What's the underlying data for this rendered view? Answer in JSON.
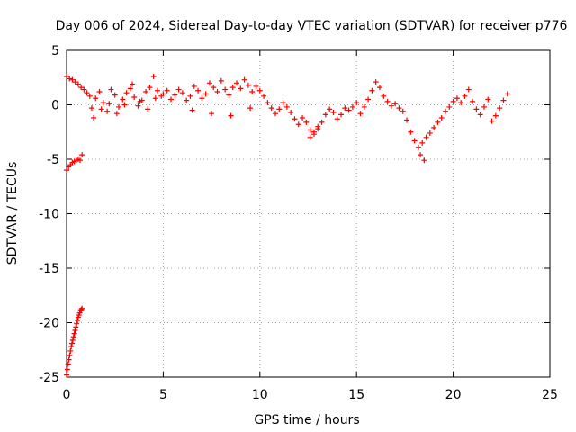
{
  "chart_data": {
    "type": "scatter",
    "title": "Day 006 of 2024, Sidereal Day-to-day VTEC variation (SDTVAR) for receiver p776",
    "xlabel": "GPS time / hours",
    "ylabel": "SDTVAR / TECUs",
    "xlim": [
      0,
      25
    ],
    "ylim": [
      -25,
      5
    ],
    "xticks": [
      0,
      5,
      10,
      15,
      20,
      25
    ],
    "yticks": [
      5,
      0,
      -5,
      -10,
      -15,
      -20,
      -25
    ],
    "grid": true,
    "marker": "+",
    "marker_color": "#ff0000",
    "series": [
      {
        "name": "SDTVAR",
        "x": [
          0.0,
          0.04,
          0.08,
          0.12,
          0.16,
          0.2,
          0.24,
          0.28,
          0.32,
          0.36,
          0.4,
          0.44,
          0.48,
          0.52,
          0.56,
          0.6,
          0.64,
          0.68,
          0.72,
          0.76,
          0.8,
          0.0,
          0.1,
          0.2,
          0.3,
          0.4,
          0.5,
          0.6,
          0.7,
          0.8,
          0.0,
          0.15,
          0.3,
          0.45,
          0.6,
          0.75,
          0.9,
          1.05,
          1.2,
          1.3,
          1.5,
          1.7,
          1.9,
          2.1,
          2.3,
          2.5,
          2.7,
          2.9,
          3.1,
          3.3,
          3.5,
          3.7,
          3.9,
          4.1,
          4.3,
          4.5,
          4.7,
          4.9,
          1.4,
          1.8,
          2.2,
          2.6,
          3.0,
          3.4,
          3.8,
          4.2,
          4.6,
          5.0,
          5.2,
          5.4,
          5.6,
          5.8,
          6.0,
          6.2,
          6.4,
          6.6,
          6.8,
          7.0,
          7.2,
          7.4,
          7.6,
          7.8,
          8.0,
          8.2,
          8.4,
          8.6,
          8.8,
          9.0,
          9.2,
          9.4,
          9.6,
          9.8,
          10.0,
          6.5,
          7.5,
          8.5,
          9.5,
          10.2,
          10.4,
          10.6,
          10.8,
          11.0,
          11.2,
          11.4,
          11.6,
          11.8,
          12.0,
          12.2,
          12.4,
          12.6,
          12.8,
          13.0,
          13.2,
          13.4,
          13.6,
          13.8,
          14.0,
          14.2,
          14.4,
          14.6,
          14.8,
          15.0,
          12.6,
          12.8,
          13.0,
          15.2,
          15.4,
          15.6,
          15.8,
          16.0,
          16.2,
          16.4,
          16.6,
          16.8,
          17.0,
          17.2,
          17.4,
          17.6,
          17.8,
          18.0,
          18.2,
          18.4,
          18.6,
          18.8,
          19.0,
          19.2,
          19.4,
          19.6,
          19.8,
          20.0,
          18.3,
          18.5,
          20.2,
          20.4,
          20.6,
          20.8,
          21.0,
          21.2,
          21.4,
          21.6,
          21.8,
          22.0,
          22.2,
          22.4,
          22.6,
          22.8
        ],
        "y": [
          -24.8,
          -24.3,
          -23.8,
          -23.4,
          -23.0,
          -22.6,
          -22.2,
          -21.9,
          -21.6,
          -21.3,
          -21.0,
          -20.7,
          -20.4,
          -20.1,
          -19.8,
          -19.5,
          -19.3,
          -19.1,
          -18.9,
          -18.8,
          -18.7,
          -6.0,
          -5.7,
          -5.5,
          -5.3,
          -5.2,
          -5.1,
          -5.0,
          -5.1,
          -4.6,
          2.6,
          2.4,
          2.3,
          2.1,
          1.9,
          1.6,
          1.4,
          1.1,
          0.8,
          -0.3,
          0.6,
          1.2,
          0.2,
          -0.6,
          1.4,
          0.9,
          -0.2,
          0.5,
          1.1,
          1.5,
          0.7,
          -0.1,
          0.4,
          1.2,
          1.6,
          2.6,
          1.3,
          0.8,
          -1.2,
          -0.4,
          0.1,
          -0.8,
          0.0,
          1.9,
          0.3,
          -0.4,
          0.6,
          1.0,
          1.3,
          0.5,
          0.9,
          1.4,
          1.1,
          0.4,
          0.8,
          1.7,
          1.3,
          0.6,
          1.0,
          2.0,
          1.6,
          1.2,
          2.2,
          1.4,
          0.9,
          1.6,
          2.0,
          1.5,
          2.3,
          1.8,
          1.2,
          1.7,
          1.3,
          -0.5,
          -0.8,
          -1.0,
          -0.3,
          0.8,
          0.2,
          -0.3,
          -0.8,
          -0.4,
          0.2,
          -0.2,
          -0.7,
          -1.3,
          -1.8,
          -1.2,
          -1.6,
          -2.3,
          -2.7,
          -2.2,
          -1.6,
          -0.9,
          -0.4,
          -0.7,
          -1.3,
          -0.9,
          -0.3,
          -0.5,
          -0.2,
          0.2,
          -3.0,
          -2.5,
          -2.0,
          -0.8,
          -0.2,
          0.5,
          1.3,
          2.1,
          1.6,
          0.8,
          0.3,
          -0.1,
          0.1,
          -0.3,
          -0.6,
          -1.4,
          -2.5,
          -3.3,
          -3.9,
          -3.5,
          -3.0,
          -2.6,
          -2.1,
          -1.6,
          -1.2,
          -0.6,
          -0.2,
          0.3,
          -4.6,
          -5.1,
          0.6,
          0.2,
          0.8,
          1.4,
          0.3,
          -0.4,
          -0.9,
          -0.2,
          0.5,
          -1.5,
          -1.0,
          -0.3,
          0.4,
          1.0
        ]
      }
    ]
  }
}
